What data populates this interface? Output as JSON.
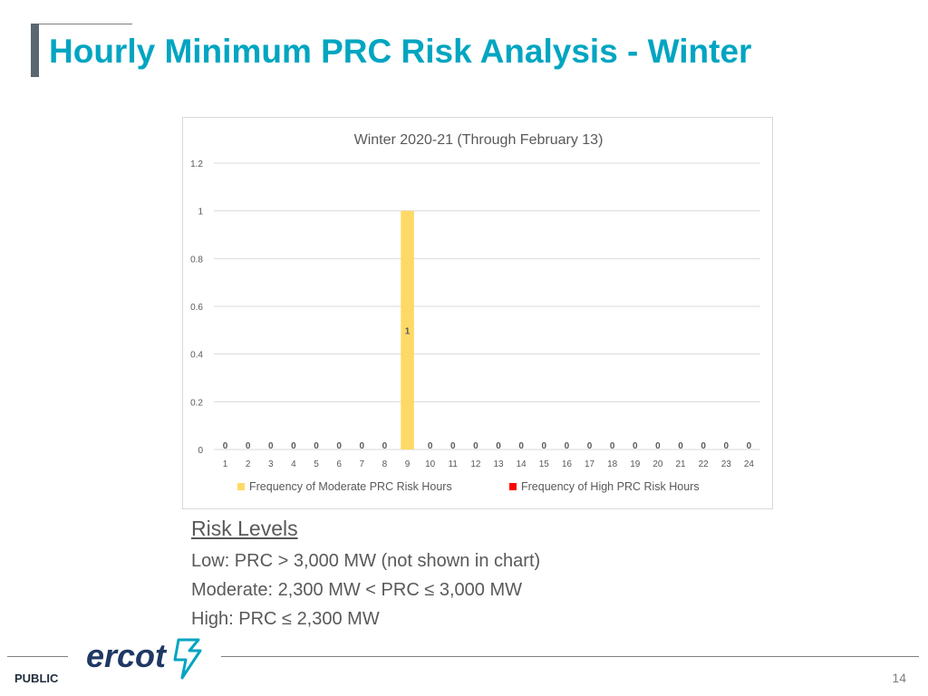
{
  "slide": {
    "title": "Hourly Minimum PRC Risk Analysis - Winter",
    "footer_label": "PUBLIC",
    "page_number": "14",
    "logo_text": "ercot"
  },
  "risk_levels": {
    "heading": "Risk Levels",
    "lines": [
      "Low: PRC > 3,000 MW (not shown in chart)",
      "Moderate: 2,300 MW < PRC ≤ 3,000 MW",
      "High: PRC ≤ 2,300 MW"
    ]
  },
  "colors": {
    "title": "#00a5c1",
    "moderate": "#ffd966",
    "high": "#ff0000",
    "logo": "#1f3864",
    "logo_accent": "#00a5c1"
  },
  "chart_data": {
    "type": "bar",
    "title": "Winter 2020-21 (Through February 13)",
    "categories": [
      "1",
      "2",
      "3",
      "4",
      "5",
      "6",
      "7",
      "8",
      "9",
      "10",
      "11",
      "12",
      "13",
      "14",
      "15",
      "16",
      "17",
      "18",
      "19",
      "20",
      "21",
      "22",
      "23",
      "24"
    ],
    "series": [
      {
        "name": "Frequency of Moderate PRC Risk Hours",
        "values": [
          0,
          0,
          0,
          0,
          0,
          0,
          0,
          0,
          1,
          0,
          0,
          0,
          0,
          0,
          0,
          0,
          0,
          0,
          0,
          0,
          0,
          0,
          0,
          0
        ]
      },
      {
        "name": "Frequency of High PRC Risk Hours",
        "values": [
          0,
          0,
          0,
          0,
          0,
          0,
          0,
          0,
          0,
          0,
          0,
          0,
          0,
          0,
          0,
          0,
          0,
          0,
          0,
          0,
          0,
          0,
          0,
          0
        ]
      }
    ],
    "data_labels": [
      "0",
      "0",
      "0",
      "0",
      "0",
      "0",
      "0",
      "0",
      "1",
      "0",
      "0",
      "0",
      "0",
      "0",
      "0",
      "0",
      "0",
      "0",
      "0",
      "0",
      "0",
      "0",
      "0",
      "0"
    ],
    "yticks": [
      "0",
      "0.2",
      "0.4",
      "0.6",
      "0.8",
      "1",
      "1.2"
    ],
    "ylim": [
      0,
      1.2
    ],
    "grid": true,
    "legend": "bottom"
  }
}
